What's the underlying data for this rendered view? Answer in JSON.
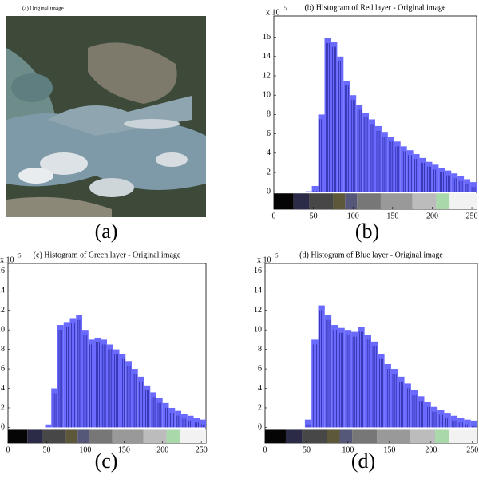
{
  "image_panel": {
    "title": "(a) Original image",
    "caption": "(a)"
  },
  "chart_data": [
    {
      "type": "histogram",
      "title": "(b) Histogram of Red layer - Original image",
      "caption": "(b)",
      "multiplier": {
        "base": "x 10",
        "exponent": "5"
      },
      "bins": [
        0,
        8,
        16,
        24,
        32,
        40,
        48,
        56,
        64,
        72,
        80,
        88,
        96,
        104,
        112,
        120,
        128,
        136,
        144,
        152,
        160,
        168,
        176,
        184,
        192,
        200,
        208,
        216,
        224,
        232,
        240,
        248,
        256
      ],
      "values": [
        0,
        0,
        0,
        0,
        0,
        0.05,
        0.6,
        8,
        15.9,
        15.5,
        14,
        11.5,
        10,
        9,
        8.2,
        7.5,
        6.8,
        6.2,
        5.7,
        5.2,
        4.7,
        4.3,
        3.9,
        3.5,
        3.1,
        2.8,
        2.5,
        2.2,
        1.9,
        1.6,
        1.3,
        1.0
      ],
      "color": "#6a6aff",
      "xlim": [
        0,
        256
      ],
      "xticks": [
        0,
        50,
        100,
        150,
        200,
        250
      ],
      "ylim": [
        -1.8,
        18.2
      ],
      "yticks": [
        0,
        2,
        4,
        6,
        8,
        10,
        12,
        14,
        16
      ]
    },
    {
      "type": "histogram",
      "title": "(c) Histogram of Green layer - Original image",
      "caption": "(c)",
      "multiplier": {
        "base": "x 10",
        "exponent": "5"
      },
      "bins": [
        0,
        8,
        16,
        24,
        32,
        40,
        48,
        56,
        64,
        72,
        80,
        88,
        96,
        104,
        112,
        120,
        128,
        136,
        144,
        152,
        160,
        168,
        176,
        184,
        192,
        200,
        208,
        216,
        224,
        232,
        240,
        248,
        256
      ],
      "values": [
        0,
        0,
        0,
        0,
        0,
        0,
        0.3,
        4,
        10.5,
        10.8,
        11.2,
        11.5,
        10,
        9,
        9.2,
        9,
        8.5,
        8,
        7.5,
        6.8,
        6,
        5.2,
        4.3,
        3.6,
        3,
        2.5,
        2,
        1.7,
        1.4,
        1.2,
        1.0,
        0.8
      ],
      "color": "#6a6aff",
      "xlim": [
        0,
        256
      ],
      "xticks": [
        0,
        50,
        100,
        150,
        200,
        250
      ],
      "ylim": [
        -1.6,
        16.8
      ],
      "yticks": [
        0,
        2,
        4,
        6,
        8,
        10,
        12,
        14,
        16
      ]
    },
    {
      "type": "histogram",
      "title": "(d) Histogram of Blue layer - Original image",
      "caption": "(d)",
      "multiplier": {
        "base": "x 10",
        "exponent": "5"
      },
      "bins": [
        0,
        8,
        16,
        24,
        32,
        40,
        48,
        56,
        64,
        72,
        80,
        88,
        96,
        104,
        112,
        120,
        128,
        136,
        144,
        152,
        160,
        168,
        176,
        184,
        192,
        200,
        208,
        216,
        224,
        232,
        240,
        248,
        256
      ],
      "values": [
        0,
        0,
        0,
        0,
        0,
        0,
        0.8,
        9,
        12.5,
        11.5,
        10.5,
        10.2,
        10,
        9.8,
        10.3,
        9.5,
        8.8,
        7.5,
        6.5,
        6,
        5.2,
        4.5,
        3.8,
        3.2,
        2.6,
        2.1,
        1.8,
        1.5,
        1.2,
        1.0,
        0.8,
        0.7
      ],
      "color": "#6a6aff",
      "xlim": [
        0,
        256
      ],
      "xticks": [
        0,
        50,
        100,
        150,
        200,
        250
      ],
      "ylim": [
        -1.6,
        16.8
      ],
      "yticks": [
        0,
        2,
        4,
        6,
        8,
        10,
        12,
        14,
        16
      ]
    }
  ]
}
